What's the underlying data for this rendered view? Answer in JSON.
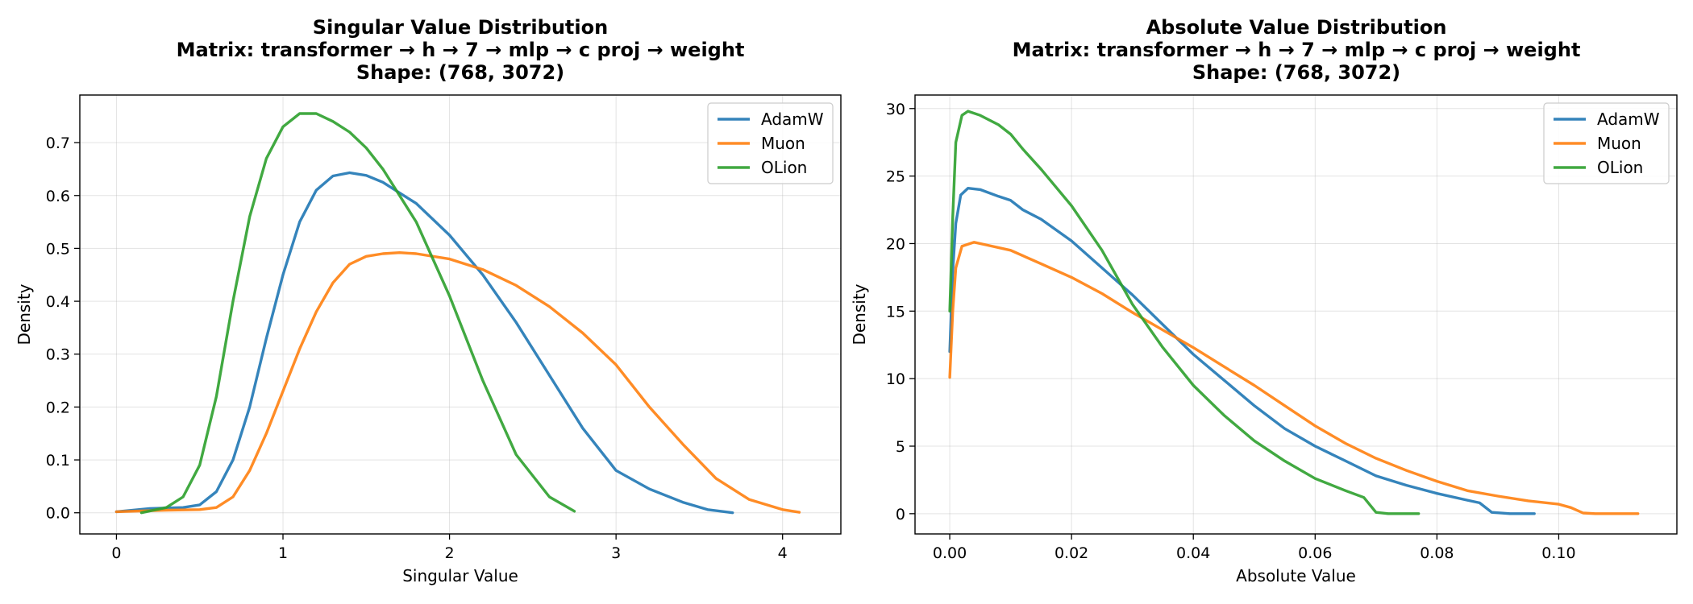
{
  "chart_data": [
    {
      "type": "line",
      "title_lines": [
        "Singular Value Distribution",
        "Matrix: transformer → h → 7 → mlp → c proj → weight",
        "Shape: (768, 3072)"
      ],
      "xlabel": "Singular Value",
      "ylabel": "Density",
      "xlim": [
        -0.22,
        4.35
      ],
      "ylim": [
        -0.04,
        0.79
      ],
      "xticks": [
        0,
        1,
        2,
        3,
        4
      ],
      "xtick_labels": [
        "0",
        "1",
        "2",
        "3",
        "4"
      ],
      "yticks": [
        0.0,
        0.1,
        0.2,
        0.3,
        0.4,
        0.5,
        0.6,
        0.7
      ],
      "ytick_labels": [
        "0.0",
        "0.1",
        "0.2",
        "0.3",
        "0.4",
        "0.5",
        "0.6",
        "0.7"
      ],
      "grid": true,
      "legend_position": "top-right",
      "series": [
        {
          "name": "AdamW",
          "color": "#1f77b4",
          "points": [
            [
              0,
              0.002
            ],
            [
              0.2,
              0.008
            ],
            [
              0.4,
              0.01
            ],
            [
              0.5,
              0.015
            ],
            [
              0.6,
              0.04
            ],
            [
              0.7,
              0.1
            ],
            [
              0.8,
              0.2
            ],
            [
              0.9,
              0.33
            ],
            [
              1.0,
              0.45
            ],
            [
              1.1,
              0.55
            ],
            [
              1.2,
              0.61
            ],
            [
              1.3,
              0.637
            ],
            [
              1.4,
              0.643
            ],
            [
              1.5,
              0.638
            ],
            [
              1.6,
              0.625
            ],
            [
              1.8,
              0.585
            ],
            [
              2.0,
              0.525
            ],
            [
              2.2,
              0.45
            ],
            [
              2.4,
              0.36
            ],
            [
              2.6,
              0.26
            ],
            [
              2.8,
              0.16
            ],
            [
              3.0,
              0.08
            ],
            [
              3.2,
              0.045
            ],
            [
              3.4,
              0.02
            ],
            [
              3.55,
              0.006
            ],
            [
              3.7,
              0.0
            ]
          ]
        },
        {
          "name": "Muon",
          "color": "#ff7f0e",
          "points": [
            [
              0,
              0.002
            ],
            [
              0.3,
              0.005
            ],
            [
              0.5,
              0.006
            ],
            [
              0.6,
              0.01
            ],
            [
              0.7,
              0.03
            ],
            [
              0.8,
              0.08
            ],
            [
              0.9,
              0.15
            ],
            [
              1.0,
              0.23
            ],
            [
              1.1,
              0.31
            ],
            [
              1.2,
              0.38
            ],
            [
              1.3,
              0.435
            ],
            [
              1.4,
              0.47
            ],
            [
              1.5,
              0.485
            ],
            [
              1.6,
              0.49
            ],
            [
              1.7,
              0.492
            ],
            [
              1.8,
              0.49
            ],
            [
              2.0,
              0.48
            ],
            [
              2.2,
              0.46
            ],
            [
              2.4,
              0.43
            ],
            [
              2.6,
              0.39
            ],
            [
              2.8,
              0.34
            ],
            [
              3.0,
              0.28
            ],
            [
              3.2,
              0.2
            ],
            [
              3.4,
              0.13
            ],
            [
              3.6,
              0.065
            ],
            [
              3.8,
              0.025
            ],
            [
              4.0,
              0.006
            ],
            [
              4.1,
              0.001
            ]
          ]
        },
        {
          "name": "OLion",
          "color": "#2ca02c",
          "points": [
            [
              0.15,
              0.0
            ],
            [
              0.3,
              0.01
            ],
            [
              0.4,
              0.03
            ],
            [
              0.5,
              0.09
            ],
            [
              0.6,
              0.22
            ],
            [
              0.7,
              0.4
            ],
            [
              0.8,
              0.56
            ],
            [
              0.9,
              0.67
            ],
            [
              1.0,
              0.73
            ],
            [
              1.1,
              0.755
            ],
            [
              1.2,
              0.755
            ],
            [
              1.3,
              0.74
            ],
            [
              1.4,
              0.72
            ],
            [
              1.5,
              0.69
            ],
            [
              1.6,
              0.65
            ],
            [
              1.8,
              0.55
            ],
            [
              2.0,
              0.41
            ],
            [
              2.2,
              0.25
            ],
            [
              2.4,
              0.11
            ],
            [
              2.6,
              0.03
            ],
            [
              2.75,
              0.003
            ]
          ]
        }
      ]
    },
    {
      "type": "line",
      "title_lines": [
        "Absolute Value Distribution",
        "Matrix: transformer → h → 7 → mlp → c proj → weight",
        "Shape: (768, 3072)"
      ],
      "xlabel": "Absolute Value",
      "ylabel": "Density",
      "xlim": [
        -0.0057,
        0.1194
      ],
      "ylim": [
        -1.5,
        31.0
      ],
      "xticks": [
        0.0,
        0.02,
        0.04,
        0.06,
        0.08,
        0.1
      ],
      "xtick_labels": [
        "0.00",
        "0.02",
        "0.04",
        "0.06",
        "0.08",
        "0.10"
      ],
      "yticks": [
        0,
        5,
        10,
        15,
        20,
        25,
        30
      ],
      "ytick_labels": [
        "0",
        "5",
        "10",
        "15",
        "20",
        "25",
        "30"
      ],
      "grid": true,
      "legend_position": "top-right",
      "series": [
        {
          "name": "AdamW",
          "color": "#1f77b4",
          "points": [
            [
              0,
              12
            ],
            [
              0.0005,
              18
            ],
            [
              0.001,
              21.5
            ],
            [
              0.0018,
              23.6
            ],
            [
              0.003,
              24.1
            ],
            [
              0.005,
              24.0
            ],
            [
              0.008,
              23.5
            ],
            [
              0.01,
              23.2
            ],
            [
              0.012,
              22.5
            ],
            [
              0.015,
              21.8
            ],
            [
              0.02,
              20.2
            ],
            [
              0.025,
              18.2
            ],
            [
              0.03,
              16.2
            ],
            [
              0.035,
              14.0
            ],
            [
              0.04,
              11.8
            ],
            [
              0.045,
              9.9
            ],
            [
              0.05,
              8.0
            ],
            [
              0.055,
              6.3
            ],
            [
              0.06,
              5.0
            ],
            [
              0.065,
              3.9
            ],
            [
              0.07,
              2.8
            ],
            [
              0.075,
              2.1
            ],
            [
              0.08,
              1.5
            ],
            [
              0.085,
              1.0
            ],
            [
              0.087,
              0.8
            ],
            [
              0.089,
              0.1
            ],
            [
              0.092,
              0.0
            ],
            [
              0.096,
              0.0
            ]
          ]
        },
        {
          "name": "Muon",
          "color": "#ff7f0e",
          "points": [
            [
              0,
              10.1
            ],
            [
              0.0005,
              15
            ],
            [
              0.001,
              18.2
            ],
            [
              0.002,
              19.8
            ],
            [
              0.004,
              20.1
            ],
            [
              0.006,
              19.9
            ],
            [
              0.01,
              19.5
            ],
            [
              0.015,
              18.5
            ],
            [
              0.02,
              17.5
            ],
            [
              0.025,
              16.3
            ],
            [
              0.03,
              14.9
            ],
            [
              0.035,
              13.6
            ],
            [
              0.04,
              12.3
            ],
            [
              0.045,
              10.9
            ],
            [
              0.05,
              9.5
            ],
            [
              0.055,
              8.0
            ],
            [
              0.06,
              6.5
            ],
            [
              0.065,
              5.2
            ],
            [
              0.07,
              4.1
            ],
            [
              0.075,
              3.2
            ],
            [
              0.08,
              2.4
            ],
            [
              0.085,
              1.7
            ],
            [
              0.09,
              1.3
            ],
            [
              0.095,
              0.95
            ],
            [
              0.1,
              0.7
            ],
            [
              0.102,
              0.45
            ],
            [
              0.104,
              0.05
            ],
            [
              0.106,
              0.0
            ],
            [
              0.113,
              0.0
            ]
          ]
        },
        {
          "name": "OLion",
          "color": "#2ca02c",
          "points": [
            [
              0,
              15
            ],
            [
              0.0005,
              22
            ],
            [
              0.001,
              27.5
            ],
            [
              0.002,
              29.5
            ],
            [
              0.003,
              29.8
            ],
            [
              0.005,
              29.5
            ],
            [
              0.008,
              28.8
            ],
            [
              0.01,
              28.1
            ],
            [
              0.012,
              27
            ],
            [
              0.015,
              25.5
            ],
            [
              0.02,
              22.8
            ],
            [
              0.025,
              19.5
            ],
            [
              0.03,
              15.5
            ],
            [
              0.035,
              12.3
            ],
            [
              0.04,
              9.5
            ],
            [
              0.045,
              7.3
            ],
            [
              0.05,
              5.4
            ],
            [
              0.055,
              3.9
            ],
            [
              0.06,
              2.6
            ],
            [
              0.065,
              1.7
            ],
            [
              0.068,
              1.2
            ],
            [
              0.07,
              0.1
            ],
            [
              0.072,
              0.0
            ],
            [
              0.077,
              0.0
            ]
          ]
        }
      ]
    }
  ]
}
